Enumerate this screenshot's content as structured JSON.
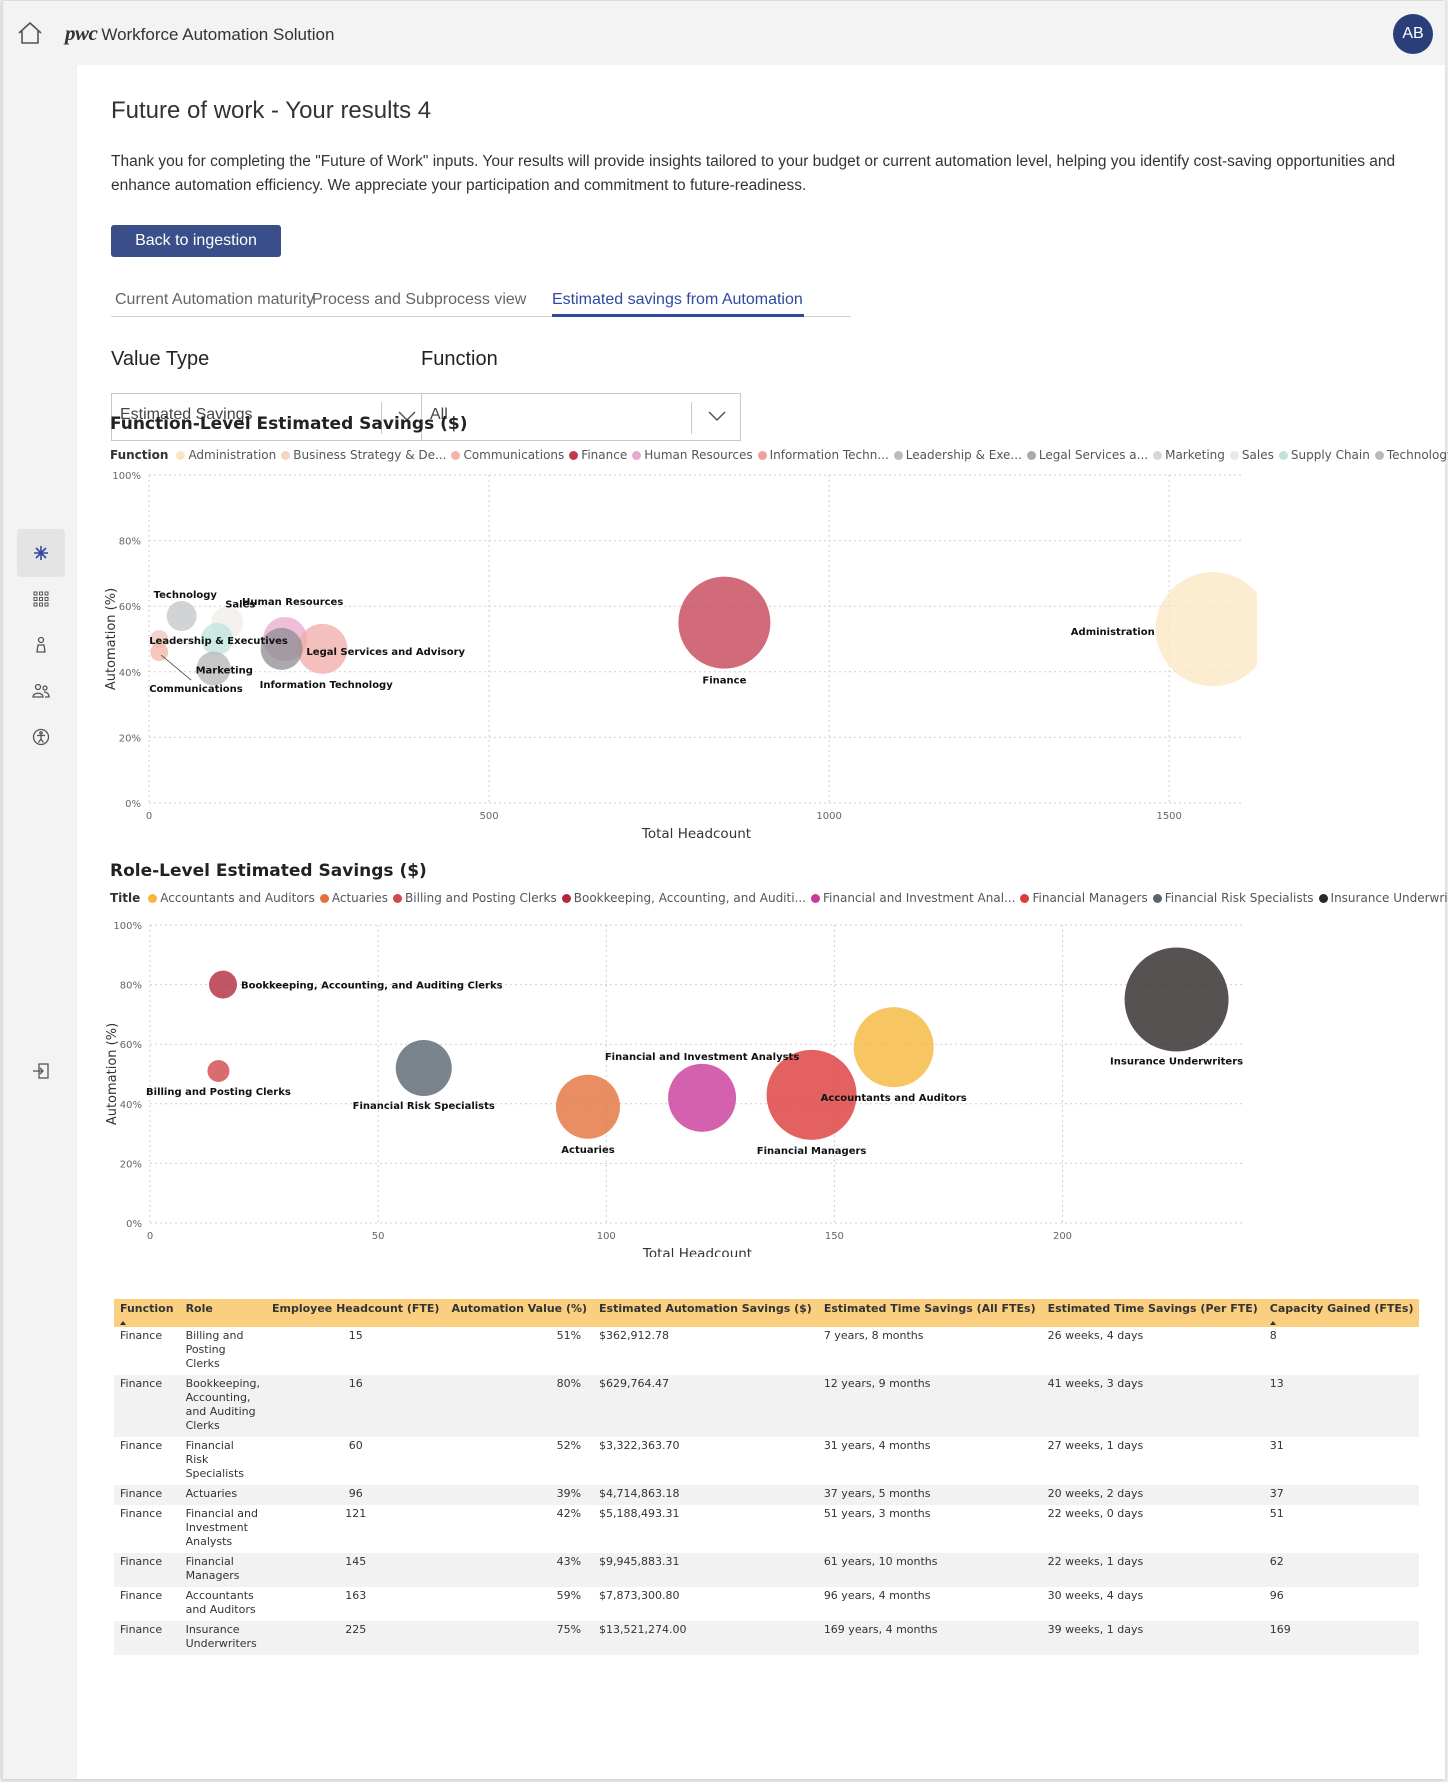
{
  "header": {
    "brand_logo": "pwc",
    "app_name": "Workforce Automation Solution",
    "avatar_initials": "AB"
  },
  "page": {
    "title": "Future of work - Your results 4",
    "intro": "Thank you for completing the \"Future of Work\" inputs. Your results will provide insights tailored to your budget or current automation level, helping you identify cost-saving opportunities and enhance automation efficiency. We appreciate your participation and commitment to future-readiness.",
    "back_button": "Back to ingestion"
  },
  "tabs": [
    {
      "label": "Current Automation maturity",
      "active": false
    },
    {
      "label": "Process and Subprocess view",
      "active": false
    },
    {
      "label": "Estimated savings from Automation",
      "active": true
    }
  ],
  "filters": {
    "value_type": {
      "label": "Value Type",
      "selected": "Estimated Savings"
    },
    "function": {
      "label": "Function",
      "selected": "All"
    }
  },
  "chart_data": [
    {
      "type": "scatter",
      "title": "Function-Level Estimated Savings ($)",
      "legend_title": "Function",
      "legend": [
        {
          "label": "Administration",
          "color": "#fbe5c0"
        },
        {
          "label": "Business Strategy & De...",
          "color": "#f8d3c0"
        },
        {
          "label": "Communications",
          "color": "#f1b5a8"
        },
        {
          "label": "Finance",
          "color": "#c13a4c"
        },
        {
          "label": "Human Resources",
          "color": "#e9a9cd"
        },
        {
          "label": "Information Techn...",
          "color": "#ef9f9c"
        },
        {
          "label": "Leadership & Exe...",
          "color": "#b8bcbf"
        },
        {
          "label": "Legal Services a...",
          "color": "#a7abad"
        },
        {
          "label": "Marketing",
          "color": "#d7d7d7"
        },
        {
          "label": "Sales",
          "color": "#eae8e4"
        },
        {
          "label": "Supply Chain",
          "color": "#bfe3dc"
        },
        {
          "label": "Technology",
          "color": "#b9b9b9"
        }
      ],
      "xlabel": "Total Headcount",
      "ylabel": "Automation (%)",
      "xlim": [
        0,
        1610
      ],
      "ylim": [
        0,
        100
      ],
      "x_ticks": [
        "0",
        "500",
        "1000",
        "1500"
      ],
      "y_ticks": [
        "0%",
        "20%",
        "40%",
        "60%",
        "80%",
        "100%"
      ],
      "points": [
        {
          "label": "Technology",
          "x": 48,
          "y": 57,
          "size": 15,
          "color": "#c2c4c5",
          "show_label": true
        },
        {
          "label": "Sales",
          "x": 115,
          "y": 55,
          "size": 16,
          "color": "#eeece8",
          "show_label": true
        },
        {
          "label": "Human Resources",
          "x": 200,
          "y": 50,
          "size": 22,
          "color": "#e9a9cd",
          "show_label": true
        },
        {
          "label": "Leadership & Executives",
          "x": 15,
          "y": 50,
          "size": 9,
          "color": "#f3c1b8",
          "show_label": true
        },
        {
          "label": "Supply Chain",
          "x": 100,
          "y": 50,
          "size": 16,
          "color": "#bfe3dc",
          "show_label": false
        },
        {
          "label": "Legal Services and Advisory",
          "x": 255,
          "y": 47,
          "size": 25,
          "color": "#f0a9a6",
          "show_label": true
        },
        {
          "label": "Information Technology",
          "x": 195,
          "y": 47,
          "size": 21,
          "color": "#8c8c90",
          "show_label": true
        },
        {
          "label": "Communications",
          "x": 15,
          "y": 46,
          "size": 9,
          "color": "#f1b5a8",
          "show_label": true
        },
        {
          "label": "Marketing",
          "x": 95,
          "y": 41,
          "size": 17,
          "color": "#b5b6b8",
          "show_label": true
        },
        {
          "label": "Finance",
          "x": 846,
          "y": 55,
          "size": 46,
          "color": "#c13a4c",
          "show_label": true
        },
        {
          "label": "Administration",
          "x": 1564,
          "y": 53,
          "size": 57,
          "color": "#fbe5c0",
          "show_label": true
        }
      ]
    },
    {
      "type": "scatter",
      "title": "Role-Level Estimated Savings ($)",
      "legend_title": "Title",
      "legend": [
        {
          "label": "Accountants and Auditors",
          "color": "#f6b73c"
        },
        {
          "label": "Actuaries",
          "color": "#e3703b"
        },
        {
          "label": "Billing and Posting Clerks",
          "color": "#d1474d"
        },
        {
          "label": "Bookkeeping, Accounting, and Auditi...",
          "color": "#b02a3d"
        },
        {
          "label": "Financial and Investment Anal...",
          "color": "#c93a9a"
        },
        {
          "label": "Financial Managers",
          "color": "#dd3a3a"
        },
        {
          "label": "Financial Risk Specialists",
          "color": "#5a6570"
        },
        {
          "label": "Insurance Underwriter",
          "color": "#2b2725"
        }
      ],
      "xlabel": "Total Headcount",
      "ylabel": "Automation (%)",
      "xlim": [
        0,
        240
      ],
      "ylim": [
        0,
        100
      ],
      "x_ticks": [
        "0",
        "50",
        "100",
        "150",
        "200"
      ],
      "y_ticks": [
        "0%",
        "20%",
        "40%",
        "60%",
        "80%",
        "100%"
      ],
      "points": [
        {
          "label": "Bookkeeping, Accounting, and Auditing Clerks",
          "x": 16,
          "y": 80,
          "size": 14,
          "color": "#b02a3d"
        },
        {
          "label": "Billing and Posting Clerks",
          "x": 15,
          "y": 51,
          "size": 11,
          "color": "#d1474d"
        },
        {
          "label": "Financial Risk Specialists",
          "x": 60,
          "y": 52,
          "size": 28,
          "color": "#5a6570"
        },
        {
          "label": "Actuaries",
          "x": 96,
          "y": 39,
          "size": 32,
          "color": "#e3703b"
        },
        {
          "label": "Financial and Investment Analysts",
          "x": 121,
          "y": 42,
          "size": 34,
          "color": "#c93a9a"
        },
        {
          "label": "Financial Managers",
          "x": 145,
          "y": 43,
          "size": 45,
          "color": "#dd3a3a"
        },
        {
          "label": "Accountants and Auditors",
          "x": 163,
          "y": 59,
          "size": 40,
          "color": "#f6b73c"
        },
        {
          "label": "Insurance Underwriters",
          "x": 225,
          "y": 75,
          "size": 52,
          "color": "#2b2725"
        }
      ]
    }
  ],
  "table": {
    "columns": [
      "Function",
      "Role",
      "Employee Headcount (FTE)",
      "Automation Value (%)",
      "Estimated Automation Savings ($)",
      "Estimated Time Savings (All FTEs)",
      "Estimated Time Savings (Per FTE)",
      "Capacity Gained (FTEs)"
    ],
    "rows": [
      [
        "Finance",
        "Billing and Posting Clerks",
        "15",
        "51%",
        "$362,912.78",
        "7 years, 8 months",
        "26 weeks, 4 days",
        "8"
      ],
      [
        "Finance",
        "Bookkeeping, Accounting, and Auditing Clerks",
        "16",
        "80%",
        "$629,764.47",
        "12 years, 9 months",
        "41 weeks, 3 days",
        "13"
      ],
      [
        "Finance",
        "Financial Risk Specialists",
        "60",
        "52%",
        "$3,322,363.70",
        "31 years, 4 months",
        "27 weeks, 1 days",
        "31"
      ],
      [
        "Finance",
        "Actuaries",
        "96",
        "39%",
        "$4,714,863.18",
        "37 years, 5 months",
        "20 weeks, 2 days",
        "37"
      ],
      [
        "Finance",
        "Financial and Investment Analysts",
        "121",
        "42%",
        "$5,188,493.31",
        "51 years, 3 months",
        "22 weeks, 0 days",
        "51"
      ],
      [
        "Finance",
        "Financial Managers",
        "145",
        "43%",
        "$9,945,883.31",
        "61 years, 10 months",
        "22 weeks, 1 days",
        "62"
      ],
      [
        "Finance",
        "Accountants and Auditors",
        "163",
        "59%",
        "$7,873,300.80",
        "96 years, 4 months",
        "30 weeks, 4 days",
        "96"
      ],
      [
        "Finance",
        "Insurance Underwriters",
        "225",
        "75%",
        "$13,521,274.00",
        "169 years, 4 months",
        "39 weeks, 1 days",
        "169"
      ]
    ]
  }
}
